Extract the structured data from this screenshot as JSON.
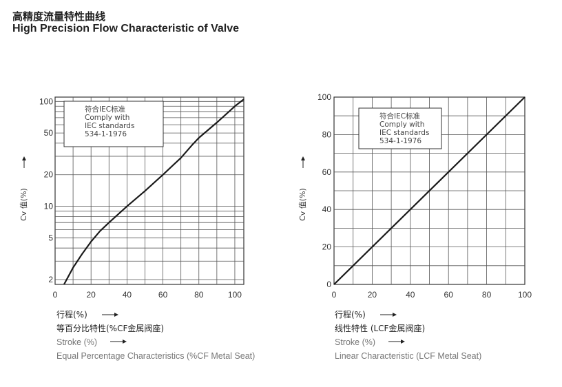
{
  "header": {
    "title_cn": "高精度流量特性曲线",
    "title_en": "High Precision  Flow Characteristic of Valve"
  },
  "chart_data": [
    {
      "type": "line",
      "yscale": "log",
      "title": "Equal Percentage Characteristics (%CF Metal Seat)",
      "ylabel": "Cv 值(%)",
      "x_label_cn": "行程(%)",
      "x_title_cn": "等百分比特性(%CF金属阀座)",
      "x_label_en": "Stroke (%)",
      "x_title_en": "Equal Percentage Characteristics (%CF Metal Seat)",
      "note": [
        "符合IEC标准",
        "Comply with",
        "IEC standards",
        "534-1-1976"
      ],
      "xlim": [
        0,
        105
      ],
      "ylim": [
        1.8,
        110
      ],
      "x_ticks": [
        0,
        20,
        40,
        60,
        80,
        100
      ],
      "y_ticks": [
        2,
        5,
        10,
        20,
        50,
        100
      ],
      "series": [
        {
          "name": "Equal Percentage",
          "x": [
            5,
            10,
            15,
            20,
            25,
            30,
            40,
            50,
            60,
            70,
            76,
            80,
            90,
            100,
            105
          ],
          "y": [
            1.8,
            2.6,
            3.5,
            4.6,
            5.8,
            7.0,
            10.0,
            14.0,
            20.0,
            29.0,
            38.0,
            45.0,
            63.0,
            90.0,
            105.0
          ]
        }
      ]
    },
    {
      "type": "line",
      "title": "Linear Characteristic (LCF Metal Seat)",
      "ylabel": "Cv 值(%)",
      "x_label_cn": "行程(%)",
      "x_title_cn": "线性特性 (LCF金属阀座)",
      "x_label_en": "Stroke (%)",
      "x_title_en": "Linear Characteristic  (LCF Metal Seat)",
      "note": [
        "符合IEC标准",
        "Comply with",
        "IEC standards",
        "534-1-1976"
      ],
      "xlim": [
        0,
        100
      ],
      "ylim": [
        0,
        100
      ],
      "x_ticks": [
        0,
        20,
        40,
        60,
        80,
        100
      ],
      "y_ticks": [
        0,
        20,
        40,
        60,
        80,
        100
      ],
      "series": [
        {
          "name": "Linear",
          "x": [
            0,
            100
          ],
          "y": [
            0,
            100
          ]
        }
      ]
    }
  ]
}
